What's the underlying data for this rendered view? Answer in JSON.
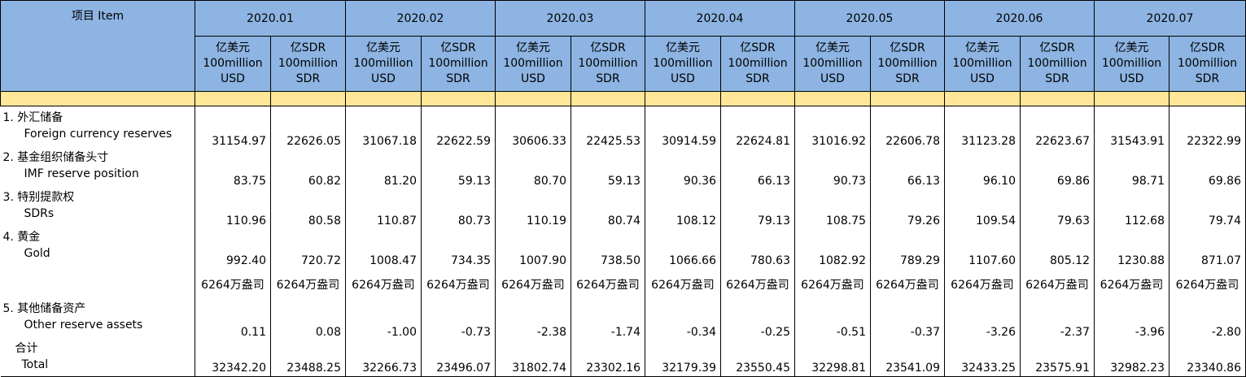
{
  "header": {
    "item_label": "项目  Item",
    "periods": [
      "2020.01",
      "2020.02",
      "2020.03",
      "2020.04",
      "2020.05",
      "2020.06",
      "2020.07"
    ],
    "unit_usd": [
      "亿美元",
      "100million",
      "USD"
    ],
    "unit_sdr": [
      "亿SDR",
      "100million",
      "SDR"
    ]
  },
  "rows": [
    {
      "zh": "1. 外汇储备",
      "en": "Foreign currency reserves",
      "values": [
        "31154.97",
        "22626.05",
        "31067.18",
        "22622.59",
        "30606.33",
        "22425.53",
        "30914.59",
        "22624.81",
        "31016.92",
        "22606.78",
        "31123.28",
        "22623.67",
        "31543.91",
        "22322.99"
      ]
    },
    {
      "zh": "2. 基金组织储备头寸",
      "en": "IMF reserve position",
      "values": [
        "83.75",
        "60.82",
        "81.20",
        "59.13",
        "80.70",
        "59.13",
        "90.36",
        "66.13",
        "90.73",
        "66.13",
        "96.10",
        "69.86",
        "98.71",
        "69.86"
      ]
    },
    {
      "zh": "3. 特别提款权",
      "en": "SDRs",
      "values": [
        "110.96",
        "80.58",
        "110.87",
        "80.73",
        "110.19",
        "80.74",
        "108.12",
        "79.13",
        "108.75",
        "79.26",
        "109.54",
        "79.63",
        "112.68",
        "79.74"
      ]
    },
    {
      "zh": "4. 黄金",
      "en": "Gold",
      "values": [
        "992.40",
        "720.72",
        "1008.47",
        "734.35",
        "1007.90",
        "738.50",
        "1066.66",
        "780.63",
        "1082.92",
        "789.29",
        "1107.60",
        "805.12",
        "1230.88",
        "871.07"
      ]
    }
  ],
  "gold_oz": [
    "6264万盎司",
    "6264万盎司",
    "6264万盎司",
    "6264万盎司",
    "6264万盎司",
    "6264万盎司",
    "6264万盎司",
    "6264万盎司",
    "6264万盎司",
    "6264万盎司",
    "6264万盎司",
    "6264万盎司",
    "6264万盎司",
    "6264万盎司"
  ],
  "other": {
    "zh": "5. 其他储备资产",
    "en": "Other reserve assets",
    "values": [
      "0.11",
      "0.08",
      "-1.00",
      "-0.73",
      "-2.38",
      "-1.74",
      "-0.34",
      "-0.25",
      "-0.51",
      "-0.37",
      "-3.26",
      "-2.37",
      "-3.96",
      "-2.80"
    ]
  },
  "total": {
    "zh": "合计",
    "en": "Total",
    "values": [
      "32342.20",
      "23488.25",
      "32266.73",
      "23496.07",
      "31802.74",
      "23302.16",
      "32179.39",
      "23550.45",
      "32298.81",
      "23541.09",
      "32433.25",
      "23575.91",
      "32982.23",
      "23340.86"
    ]
  }
}
